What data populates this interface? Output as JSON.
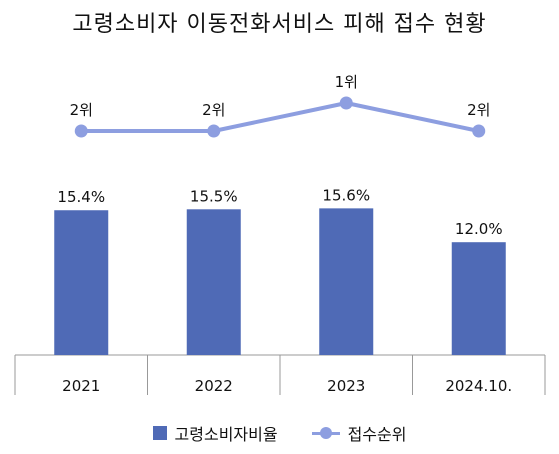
{
  "title": "고령소비자 이동전화서비스 피해 접수 현황",
  "colors": {
    "bar": "#4f6ab6",
    "line": "#8d9ee0",
    "axis": "#999999"
  },
  "chart_data": {
    "type": "bar",
    "categories": [
      "2021",
      "2022",
      "2023",
      "2024.10."
    ],
    "series": [
      {
        "name": "고령소비자비율",
        "type": "bar",
        "values": [
          15.4,
          15.5,
          15.6,
          12.0
        ],
        "labels": [
          "15.4%",
          "15.5%",
          "15.6%",
          "12.0%"
        ]
      },
      {
        "name": "접수순위",
        "type": "line",
        "values": [
          2,
          2,
          1,
          2
        ],
        "labels": [
          "2위",
          "2위",
          "1위",
          "2위"
        ]
      }
    ],
    "legend": {
      "position": "bottom"
    },
    "grid": false
  }
}
